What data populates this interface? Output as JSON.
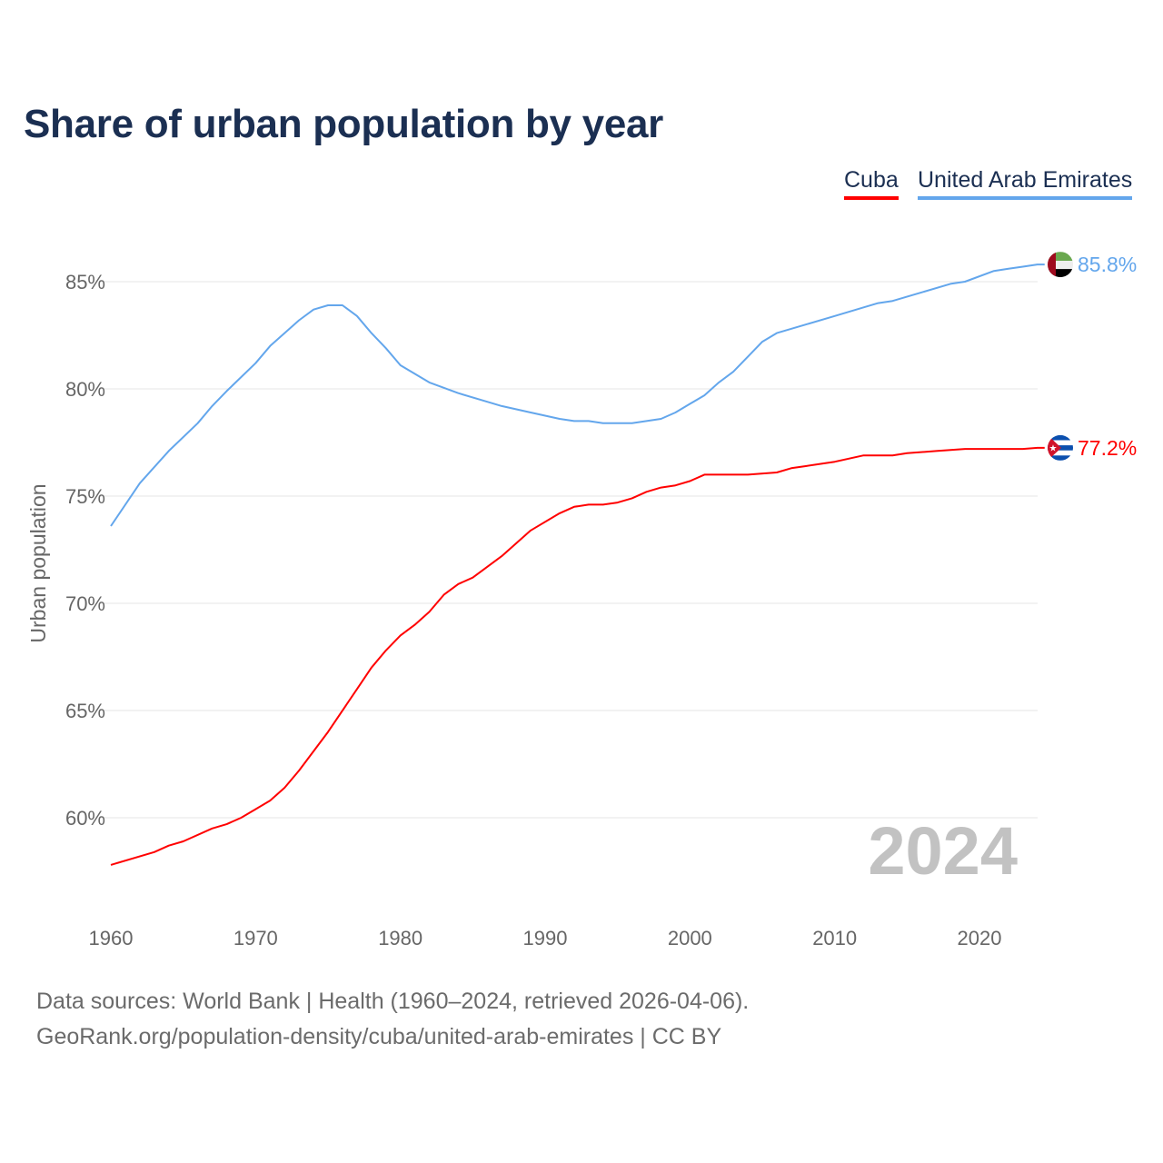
{
  "chart_data": {
    "type": "line",
    "title": "Share of urban population by year",
    "ylabel": "Urban population",
    "xlabel": "",
    "ylim": [
      56,
      87.5
    ],
    "xlim": [
      1960,
      2024
    ],
    "y_ticks": [
      60,
      65,
      70,
      75,
      80,
      85
    ],
    "y_tick_labels": [
      "60%",
      "65%",
      "70%",
      "75%",
      "80%",
      "85%"
    ],
    "x_ticks": [
      1960,
      1970,
      1980,
      1990,
      2000,
      2010,
      2020
    ],
    "x_tick_labels": [
      "1960",
      "1970",
      "1980",
      "1990",
      "2000",
      "2010",
      "2020"
    ],
    "grid": "horizontal",
    "legend_position": "top-right",
    "year_watermark": "2024",
    "series": [
      {
        "name": "Cuba",
        "color": "#ff0000",
        "end_label": "77.2%",
        "flag": "cuba-flag",
        "points": [
          [
            1960,
            57.8
          ],
          [
            1963,
            58.4
          ],
          [
            1964,
            58.7
          ],
          [
            1965,
            58.9
          ],
          [
            1967,
            59.5
          ],
          [
            1968,
            59.7
          ],
          [
            1969,
            60.0
          ],
          [
            1970,
            60.4
          ],
          [
            1971,
            60.8
          ],
          [
            1972,
            61.4
          ],
          [
            1973,
            62.2
          ],
          [
            1975,
            64.0
          ],
          [
            1977,
            66.0
          ],
          [
            1978,
            67.0
          ],
          [
            1979,
            67.8
          ],
          [
            1980,
            68.5
          ],
          [
            1981,
            69.0
          ],
          [
            1982,
            69.6
          ],
          [
            1983,
            70.4
          ],
          [
            1984,
            70.9
          ],
          [
            1985,
            71.2
          ],
          [
            1987,
            72.2
          ],
          [
            1989,
            73.4
          ],
          [
            1991,
            74.2
          ],
          [
            1992,
            74.5
          ],
          [
            1993,
            74.6
          ],
          [
            1994,
            74.6
          ],
          [
            1995,
            74.7
          ],
          [
            1996,
            74.9
          ],
          [
            1997,
            75.2
          ],
          [
            1998,
            75.4
          ],
          [
            1999,
            75.5
          ],
          [
            2000,
            75.7
          ],
          [
            2001,
            76.0
          ],
          [
            2004,
            76.0
          ],
          [
            2006,
            76.1
          ],
          [
            2007,
            76.3
          ],
          [
            2008,
            76.4
          ],
          [
            2010,
            76.6
          ],
          [
            2012,
            76.9
          ],
          [
            2014,
            76.9
          ],
          [
            2015,
            77.0
          ],
          [
            2017,
            77.1
          ],
          [
            2019,
            77.2
          ],
          [
            2023,
            77.2
          ],
          [
            2024,
            77.25
          ]
        ]
      },
      {
        "name": "United Arab Emirates",
        "color": "#63a6ec",
        "end_label": "85.8%",
        "flag": "uae-flag",
        "points": [
          [
            1960,
            73.6
          ],
          [
            1962,
            75.6
          ],
          [
            1964,
            77.1
          ],
          [
            1966,
            78.4
          ],
          [
            1967,
            79.2
          ],
          [
            1968,
            79.9
          ],
          [
            1970,
            81.2
          ],
          [
            1971,
            82.0
          ],
          [
            1973,
            83.2
          ],
          [
            1974,
            83.7
          ],
          [
            1975,
            83.9
          ],
          [
            1976,
            83.9
          ],
          [
            1977,
            83.4
          ],
          [
            1978,
            82.6
          ],
          [
            1979,
            81.9
          ],
          [
            1980,
            81.1
          ],
          [
            1982,
            80.3
          ],
          [
            1984,
            79.8
          ],
          [
            1986,
            79.4
          ],
          [
            1987,
            79.2
          ],
          [
            1989,
            78.9
          ],
          [
            1991,
            78.6
          ],
          [
            1992,
            78.5
          ],
          [
            1993,
            78.5
          ],
          [
            1994,
            78.4
          ],
          [
            1996,
            78.4
          ],
          [
            1997,
            78.5
          ],
          [
            1998,
            78.6
          ],
          [
            1999,
            78.9
          ],
          [
            2000,
            79.3
          ],
          [
            2001,
            79.7
          ],
          [
            2002,
            80.3
          ],
          [
            2003,
            80.8
          ],
          [
            2004,
            81.5
          ],
          [
            2005,
            82.2
          ],
          [
            2006,
            82.6
          ],
          [
            2008,
            83.0
          ],
          [
            2010,
            83.4
          ],
          [
            2012,
            83.8
          ],
          [
            2013,
            84.0
          ],
          [
            2014,
            84.1
          ],
          [
            2016,
            84.5
          ],
          [
            2018,
            84.9
          ],
          [
            2019,
            85.0
          ],
          [
            2021,
            85.5
          ],
          [
            2022,
            85.6
          ],
          [
            2023,
            85.7
          ],
          [
            2024,
            85.8
          ]
        ]
      }
    ]
  },
  "footer": {
    "line1": "Data sources: World Bank | Health (1960–2024, retrieved 2026-04-06).",
    "line2": "GeoRank.org/population-density/cuba/united-arab-emirates | CC BY"
  }
}
